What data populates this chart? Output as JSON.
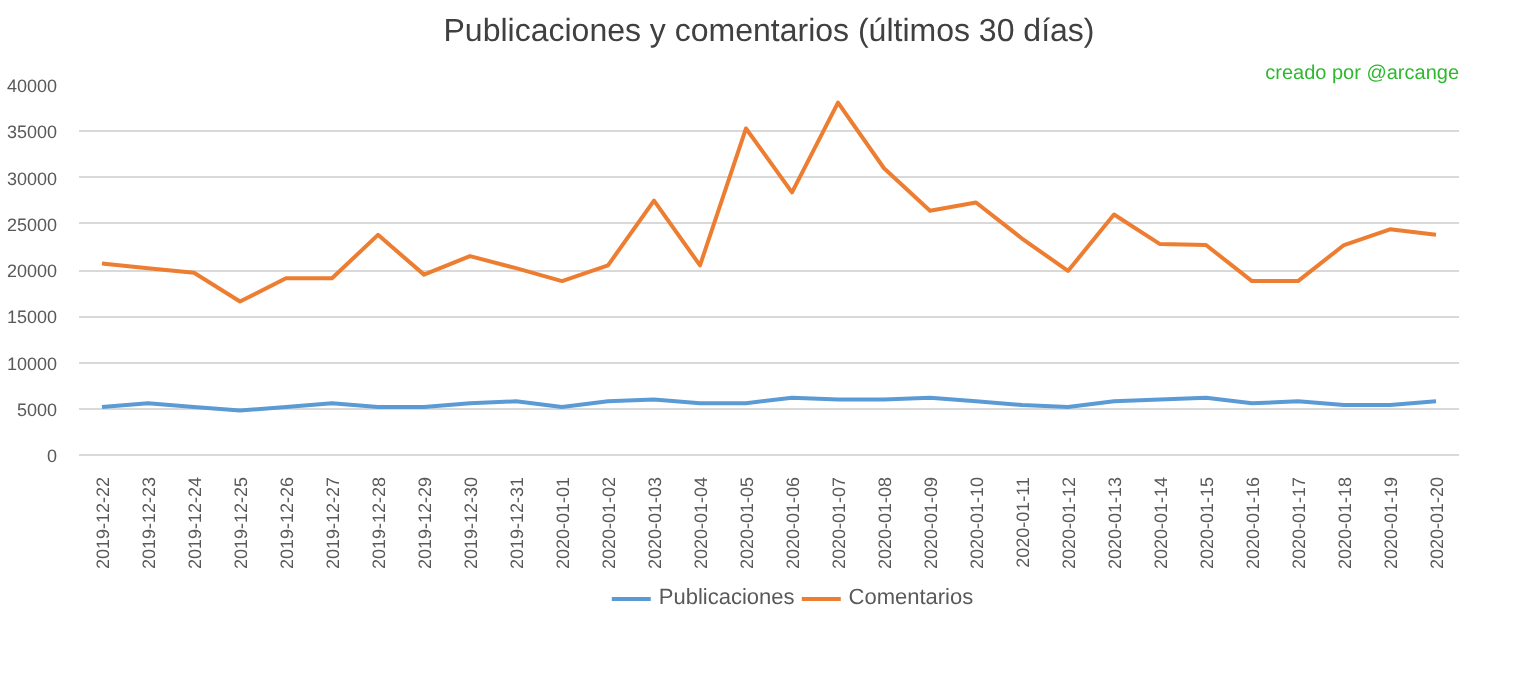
{
  "chart_data": {
    "type": "line",
    "title": "Publicaciones y comentarios (últimos 30 días)",
    "annotations": [
      "creado por @arcange"
    ],
    "categories": [
      "2019-12-22",
      "2019-12-23",
      "2019-12-24",
      "2019-12-25",
      "2019-12-26",
      "2019-12-27",
      "2019-12-28",
      "2019-12-29",
      "2019-12-30",
      "2019-12-31",
      "2020-01-01",
      "2020-01-02",
      "2020-01-03",
      "2020-01-04",
      "2020-01-05",
      "2020-01-06",
      "2020-01-07",
      "2020-01-08",
      "2020-01-09",
      "2020-01-10",
      "2020-01-11",
      "2020-01-12",
      "2020-01-13",
      "2020-01-14",
      "2020-01-15",
      "2020-01-16",
      "2020-01-17",
      "2020-01-18",
      "2020-01-19",
      "2020-01-20"
    ],
    "series": [
      {
        "name": "Publicaciones",
        "color": "#5b9bd5",
        "values": [
          5200,
          5600,
          5200,
          4800,
          5200,
          5600,
          5200,
          5200,
          5600,
          5800,
          5200,
          5800,
          6000,
          5600,
          5600,
          6200,
          6000,
          6000,
          6200,
          5800,
          5400,
          5200,
          5800,
          6000,
          6200,
          5600,
          5800,
          5400,
          5400,
          5800
        ]
      },
      {
        "name": "Comentarios",
        "color": "#ed7d31",
        "values": [
          20700,
          20200,
          19700,
          16600,
          19100,
          19100,
          23800,
          19500,
          21500,
          20200,
          18800,
          20500,
          27500,
          20500,
          35300,
          28400,
          38100,
          31000,
          26400,
          27300,
          23400,
          19900,
          26000,
          22800,
          22700,
          18800,
          18800,
          22700,
          24400,
          23800
        ]
      }
    ],
    "ylim": [
      0,
      40000
    ],
    "yticks": [
      0,
      5000,
      10000,
      15000,
      20000,
      25000,
      30000,
      35000,
      40000
    ],
    "grid": "y",
    "legend": "bottom",
    "marker": "none",
    "line_style": "solid"
  }
}
